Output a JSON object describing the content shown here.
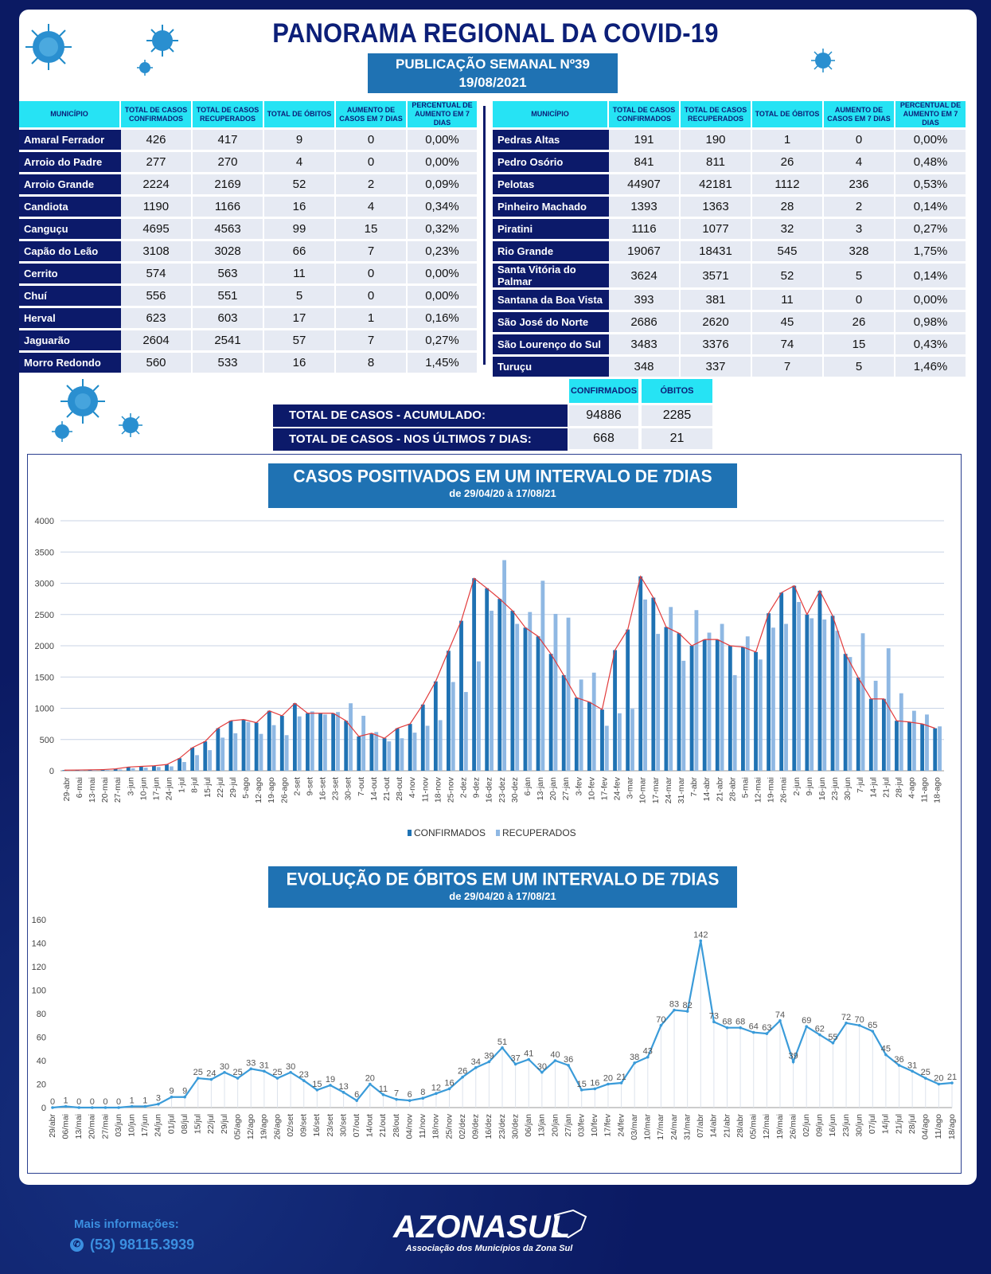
{
  "header": {
    "title": "PANORAMA REGIONAL DA COVID-19",
    "publication": "PUBLICAÇÃO SEMANAL Nº39",
    "date": "19/08/2021"
  },
  "table_headers": [
    "MUNICÍPIO",
    "TOTAL DE CASOS CONFIRMADOS",
    "TOTAL DE CASOS RECUPERADOS",
    "TOTAL DE ÓBITOS",
    "AUMENTO DE CASOS EM 7 DIAS",
    "PERCENTUAL DE AUMENTO EM 7 DIAS"
  ],
  "table_left": [
    [
      "Amaral Ferrador",
      "426",
      "417",
      "9",
      "0",
      "0,00%"
    ],
    [
      "Arroio do Padre",
      "277",
      "270",
      "4",
      "0",
      "0,00%"
    ],
    [
      "Arroio Grande",
      "2224",
      "2169",
      "52",
      "2",
      "0,09%"
    ],
    [
      "Candiota",
      "1190",
      "1166",
      "16",
      "4",
      "0,34%"
    ],
    [
      "Canguçu",
      "4695",
      "4563",
      "99",
      "15",
      "0,32%"
    ],
    [
      "Capão do Leão",
      "3108",
      "3028",
      "66",
      "7",
      "0,23%"
    ],
    [
      "Cerrito",
      "574",
      "563",
      "11",
      "0",
      "0,00%"
    ],
    [
      "Chuí",
      "556",
      "551",
      "5",
      "0",
      "0,00%"
    ],
    [
      "Herval",
      "623",
      "603",
      "17",
      "1",
      "0,16%"
    ],
    [
      "Jaguarão",
      "2604",
      "2541",
      "57",
      "7",
      "0,27%"
    ],
    [
      "Morro Redondo",
      "560",
      "533",
      "16",
      "8",
      "1,45%"
    ]
  ],
  "table_right": [
    [
      "Pedras Altas",
      "191",
      "190",
      "1",
      "0",
      "0,00%"
    ],
    [
      "Pedro Osório",
      "841",
      "811",
      "26",
      "4",
      "0,48%"
    ],
    [
      "Pelotas",
      "44907",
      "42181",
      "1112",
      "236",
      "0,53%"
    ],
    [
      "Pinheiro Machado",
      "1393",
      "1363",
      "28",
      "2",
      "0,14%"
    ],
    [
      "Piratini",
      "1116",
      "1077",
      "32",
      "3",
      "0,27%"
    ],
    [
      "Rio Grande",
      "19067",
      "18431",
      "545",
      "328",
      "1,75%"
    ],
    [
      "Santa Vitória do Palmar",
      "3624",
      "3571",
      "52",
      "5",
      "0,14%"
    ],
    [
      "Santana da Boa Vista",
      "393",
      "381",
      "11",
      "0",
      "0,00%"
    ],
    [
      "São José do Norte",
      "2686",
      "2620",
      "45",
      "26",
      "0,98%"
    ],
    [
      "São Lourenço do Sul",
      "3483",
      "3376",
      "74",
      "15",
      "0,43%"
    ],
    [
      "Turuçu",
      "348",
      "337",
      "7",
      "5",
      "1,46%"
    ]
  ],
  "totals": {
    "col_confirmed": "CONFIRMADOS",
    "col_deaths": "ÓBITOS",
    "row1_label": "TOTAL DE CASOS  - ACUMULADO:",
    "row1_confirmed": "94886",
    "row1_deaths": "2285",
    "row2_label": "TOTAL DE CASOS  - NOS ÚLTIMOS 7 DIAS:",
    "row2_confirmed": "668",
    "row2_deaths": "21"
  },
  "chart_data": [
    {
      "type": "bar",
      "title": "CASOS POSITIVADOS EM UM INTERVALO DE 7DIAS",
      "subtitle": "de 29/04/20 à 17/08/21",
      "ylim": [
        0,
        4000
      ],
      "yticks": [
        0,
        500,
        1000,
        1500,
        2000,
        2500,
        3000,
        3500,
        4000
      ],
      "grid": true,
      "legend_position": "bottom",
      "categories": [
        "29-abr",
        "6-mai",
        "13-mai",
        "20-mai",
        "27-mai",
        "3-jun",
        "10-jun",
        "17-jun",
        "24-jun",
        "1-jul",
        "8-jul",
        "15-jul",
        "22-jul",
        "29-jul",
        "5-ago",
        "12-ago",
        "19-ago",
        "26-ago",
        "2-set",
        "9-set",
        "16-set",
        "23-set",
        "30-set",
        "7-out",
        "14-out",
        "21-out",
        "28-out",
        "4-nov",
        "11-nov",
        "18-nov",
        "25-nov",
        "2-dez",
        "9-dez",
        "16-dez",
        "23-dez",
        "30-dez",
        "6-jan",
        "13-jan",
        "20-jan",
        "27-jan",
        "3-fev",
        "10-fev",
        "17-fev",
        "24-fev",
        "3-mar",
        "10-mar",
        "17-mar",
        "24-mar",
        "31-mar",
        "7-abr",
        "14-abr",
        "21-abr",
        "28-abr",
        "5-mai",
        "12-mai",
        "19-mai",
        "26-mai",
        "2-jun",
        "9-jun",
        "16-jun",
        "23-jun",
        "30-jun",
        "7-jul",
        "14-jul",
        "21-jul",
        "28-jul",
        "4-ago",
        "11-ago",
        "18-ago"
      ],
      "series": [
        {
          "name": "CONFIRMADOS",
          "color": "#1f72b3",
          "values": [
            10,
            12,
            15,
            18,
            30,
            60,
            70,
            80,
            100,
            200,
            370,
            470,
            680,
            800,
            820,
            770,
            960,
            880,
            1080,
            920,
            920,
            920,
            800,
            550,
            600,
            520,
            680,
            750,
            1060,
            1430,
            1920,
            2400,
            3080,
            2920,
            2750,
            2560,
            2290,
            2150,
            1870,
            1530,
            1170,
            1100,
            980,
            1930,
            2260,
            3110,
            2770,
            2300,
            2200,
            2000,
            2100,
            2100,
            2000,
            1980,
            1900,
            2520,
            2850,
            2960,
            2500,
            2880,
            2480,
            1870,
            1490,
            1150,
            1150,
            800,
            780,
            750,
            680
          ]
        },
        {
          "name": "RECUPERADOS",
          "color": "#8fb8e3",
          "values": [
            5,
            8,
            10,
            12,
            20,
            40,
            50,
            60,
            70,
            140,
            250,
            330,
            530,
            600,
            780,
            590,
            730,
            570,
            870,
            950,
            900,
            940,
            1080,
            880,
            620,
            470,
            520,
            610,
            720,
            810,
            1420,
            1260,
            1750,
            2560,
            3370,
            2350,
            2540,
            3040,
            2510,
            2450,
            1460,
            1570,
            720,
            920,
            990,
            2740,
            2190,
            2620,
            1760,
            2570,
            2210,
            2350,
            1530,
            2150,
            1780,
            2290,
            2350,
            2700,
            2440,
            2420,
            2240,
            1820,
            2200,
            1440,
            1960,
            1240,
            960,
            900,
            710
          ]
        },
        {
          "name": "trend",
          "color": "#e23b3b",
          "values": [
            10,
            12,
            15,
            18,
            30,
            60,
            70,
            80,
            100,
            200,
            370,
            470,
            680,
            800,
            820,
            770,
            960,
            880,
            1080,
            920,
            920,
            920,
            800,
            550,
            600,
            520,
            680,
            750,
            1060,
            1430,
            1920,
            2400,
            3080,
            2920,
            2750,
            2560,
            2290,
            2150,
            1870,
            1530,
            1170,
            1100,
            980,
            1930,
            2260,
            3110,
            2770,
            2300,
            2200,
            2000,
            2100,
            2100,
            2000,
            1980,
            1900,
            2520,
            2850,
            2960,
            2500,
            2880,
            2480,
            1870,
            1490,
            1150,
            1150,
            800,
            780,
            750,
            680
          ]
        }
      ]
    },
    {
      "type": "line",
      "title": "EVOLUÇÃO DE ÓBITOS EM UM INTERVALO DE 7DIAS",
      "subtitle": "de 29/04/20 à 17/08/21",
      "ylim": [
        0,
        160
      ],
      "yticks": [
        0,
        20,
        40,
        60,
        80,
        100,
        120,
        140,
        160
      ],
      "grid": false,
      "categories": [
        "29/abr",
        "06/mai",
        "13/mai",
        "20/mai",
        "27/mai",
        "03/jun",
        "10/jun",
        "17/jun",
        "24/jun",
        "01/jul",
        "08/jul",
        "15/jul",
        "22/jul",
        "29/jul",
        "05/ago",
        "12/ago",
        "19/ago",
        "26/ago",
        "02/set",
        "09/set",
        "16/set",
        "23/set",
        "30/set",
        "07/out",
        "14/out",
        "21/out",
        "28/out",
        "04/nov",
        "11/nov",
        "18/nov",
        "25/nov",
        "02/dez",
        "09/dez",
        "16/dez",
        "23/dez",
        "30/dez",
        "06/jan",
        "13/jan",
        "20/jan",
        "27/jan",
        "03/fev",
        "10/fev",
        "17/fev",
        "24/fev",
        "03/mar",
        "10/mar",
        "17/mar",
        "24/mar",
        "31/mar",
        "07/abr",
        "14/abr",
        "21/abr",
        "28/abr",
        "05/mai",
        "12/mai",
        "19/mai",
        "26/mai",
        "02/jun",
        "09/jun",
        "16/jun",
        "23/jun",
        "30/jun",
        "07/jul",
        "14/jul",
        "21/jul",
        "28/jul",
        "04/ago",
        "11/ago",
        "18/ago"
      ],
      "series": [
        {
          "name": "ÓBITOS",
          "color": "#3a9bd9",
          "values": [
            0,
            1,
            0,
            0,
            0,
            0,
            1,
            1,
            3,
            9,
            9,
            25,
            24,
            30,
            25,
            33,
            31,
            25,
            30,
            23,
            15,
            19,
            13,
            6,
            20,
            11,
            7,
            6,
            8,
            12,
            16,
            26,
            34,
            39,
            51,
            37,
            41,
            30,
            40,
            36,
            15,
            16,
            20,
            21,
            38,
            43,
            70,
            83,
            82,
            142,
            73,
            68,
            68,
            64,
            63,
            74,
            39,
            69,
            62,
            55,
            72,
            70,
            65,
            45,
            36,
            31,
            25,
            20,
            21
          ]
        }
      ]
    }
  ],
  "footer": {
    "info_label": "Mais informações:",
    "phone": "(53) 98115.3939",
    "logo_text": "AZONASUL",
    "logo_sub": "Associação dos Municípios da Zona Sul"
  },
  "colors": {
    "navy": "#0c1a6a",
    "cyan": "#26e3f4",
    "blue": "#1f72b3",
    "light_blue": "#8fb8e3",
    "trend_red": "#e23b3b"
  }
}
